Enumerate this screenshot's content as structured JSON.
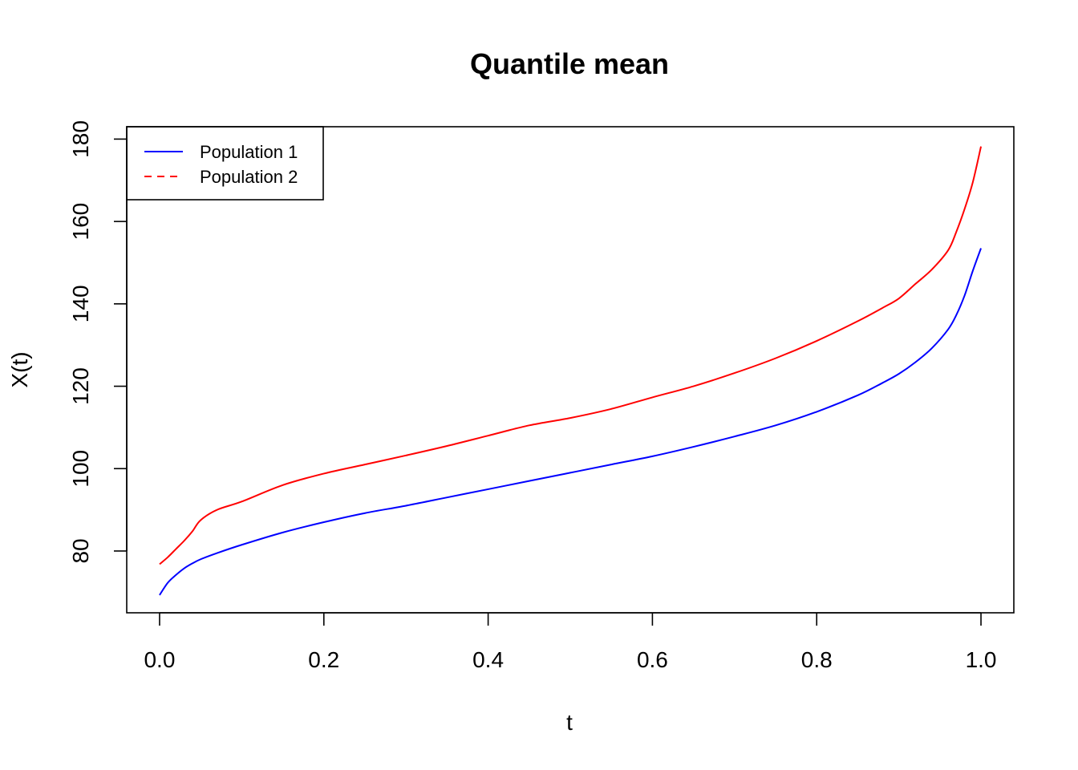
{
  "chart_data": {
    "type": "line",
    "title": "Quantile mean",
    "xlabel": "t",
    "ylabel": "X(t)",
    "xlim": [
      -0.04,
      1.04
    ],
    "ylim": [
      65,
      183
    ],
    "x_ticks": [
      "0.0",
      "0.2",
      "0.4",
      "0.6",
      "0.8",
      "1.0"
    ],
    "y_ticks": [
      "80",
      "100",
      "120",
      "140",
      "160",
      "180"
    ],
    "grid": false,
    "legend_position": "top-left",
    "x": [
      0.0,
      0.01,
      0.02,
      0.03,
      0.04,
      0.05,
      0.07,
      0.1,
      0.15,
      0.2,
      0.25,
      0.3,
      0.35,
      0.4,
      0.45,
      0.5,
      0.55,
      0.6,
      0.65,
      0.7,
      0.75,
      0.8,
      0.85,
      0.88,
      0.9,
      0.92,
      0.94,
      0.96,
      0.97,
      0.98,
      0.99,
      1.0
    ],
    "series": [
      {
        "name": "Population 1",
        "color": "#0000ff",
        "line_style": "solid",
        "values": [
          69.3,
          72.3,
          74.2,
          75.8,
          77.0,
          78.0,
          79.5,
          81.5,
          84.5,
          87.0,
          89.2,
          91.0,
          93.0,
          95.0,
          97.0,
          99.0,
          101.0,
          103.0,
          105.3,
          107.8,
          110.5,
          113.8,
          117.8,
          120.8,
          123.0,
          125.8,
          129.2,
          133.8,
          137.3,
          142.0,
          148.0,
          153.5
        ]
      },
      {
        "name": "Population 2",
        "color": "#ff0000",
        "line_style": "dashed",
        "values": [
          76.8,
          78.5,
          80.5,
          82.5,
          84.8,
          87.5,
          90.0,
          92.0,
          96.0,
          98.8,
          101.0,
          103.2,
          105.5,
          108.0,
          110.5,
          112.3,
          114.5,
          117.3,
          120.0,
          123.2,
          126.8,
          131.0,
          135.8,
          139.0,
          141.3,
          144.8,
          148.3,
          153.0,
          157.5,
          163.0,
          169.5,
          178.2
        ]
      }
    ]
  }
}
